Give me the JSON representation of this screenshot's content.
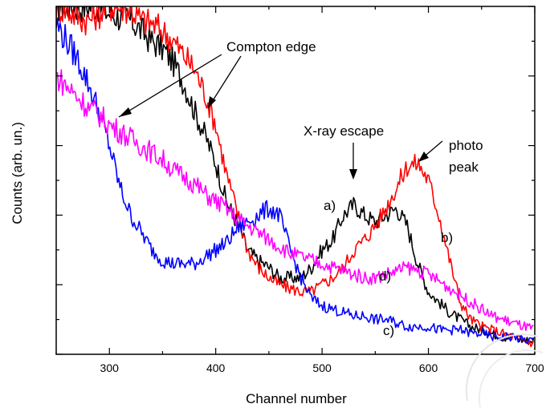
{
  "chart_data": {
    "type": "line",
    "xlabel": "Channel number",
    "ylabel": "Counts (arb. un.)",
    "xlim": [
      250,
      700
    ],
    "ylim": [
      0,
      100
    ],
    "xticks": [
      300,
      400,
      500,
      600,
      700
    ],
    "yticks_labeled": false,
    "grid": false,
    "series": [
      {
        "name": "a)",
        "color": "#000000",
        "x": [
          250,
          260,
          270,
          280,
          290,
          300,
          310,
          320,
          330,
          340,
          350,
          360,
          370,
          380,
          390,
          400,
          410,
          420,
          430,
          440,
          450,
          460,
          470,
          480,
          490,
          500,
          510,
          520,
          530,
          540,
          550,
          560,
          570,
          580,
          590,
          600,
          610,
          620,
          630,
          640,
          650,
          660,
          670,
          680,
          690,
          700
        ],
        "y": [
          100,
          100,
          100,
          100,
          100,
          98,
          97,
          96,
          93,
          90,
          88,
          84,
          78,
          70,
          63,
          55,
          44,
          38,
          30,
          27,
          25,
          22,
          22,
          22,
          25,
          30,
          33,
          40,
          43,
          40,
          38,
          40,
          42,
          37,
          26,
          18,
          15,
          12,
          10,
          8,
          7,
          6,
          5,
          5,
          4,
          4
        ]
      },
      {
        "name": "b)",
        "color": "#ff0000",
        "x": [
          250,
          260,
          270,
          280,
          290,
          300,
          310,
          320,
          330,
          340,
          350,
          360,
          370,
          380,
          390,
          400,
          410,
          420,
          430,
          440,
          450,
          460,
          470,
          480,
          490,
          500,
          510,
          520,
          530,
          540,
          550,
          560,
          570,
          580,
          590,
          600,
          610,
          620,
          630,
          640,
          650,
          660,
          670,
          680,
          690,
          700
        ],
        "y": [
          100,
          99,
          97,
          96,
          98,
          100,
          100,
          99,
          96,
          95,
          93,
          90,
          86,
          82,
          75,
          66,
          52,
          41,
          30,
          25,
          22,
          20,
          19,
          18,
          18,
          20,
          22,
          25,
          30,
          33,
          37,
          42,
          48,
          54,
          55,
          50,
          40,
          27,
          15,
          10,
          8,
          7,
          6,
          5,
          4,
          3
        ]
      },
      {
        "name": "c)",
        "color": "#0000ff",
        "x": [
          250,
          260,
          270,
          280,
          290,
          300,
          310,
          320,
          330,
          340,
          350,
          360,
          370,
          380,
          390,
          400,
          410,
          420,
          430,
          440,
          450,
          460,
          470,
          480,
          490,
          500,
          510,
          520,
          530,
          540,
          550,
          560,
          570,
          580,
          590,
          600,
          610,
          620,
          630,
          640,
          650,
          660,
          670,
          680,
          690,
          700
        ],
        "y": [
          95,
          90,
          85,
          78,
          70,
          60,
          48,
          40,
          35,
          30,
          27,
          26,
          26,
          26,
          28,
          30,
          32,
          36,
          38,
          40,
          42,
          40,
          30,
          22,
          16,
          14,
          13,
          12,
          11,
          11,
          10,
          10,
          9,
          8,
          8,
          8,
          7,
          7,
          7,
          6,
          6,
          5,
          5,
          5,
          4,
          4
        ]
      },
      {
        "name": "d)",
        "color": "#ff00ff",
        "x": [
          250,
          260,
          270,
          280,
          290,
          300,
          310,
          320,
          330,
          340,
          350,
          360,
          370,
          380,
          390,
          400,
          410,
          420,
          430,
          440,
          450,
          460,
          470,
          480,
          490,
          500,
          510,
          520,
          530,
          540,
          550,
          560,
          570,
          580,
          590,
          600,
          610,
          620,
          630,
          640,
          650,
          660,
          670,
          680,
          690,
          700
        ],
        "y": [
          80,
          77,
          74,
          71,
          69,
          66,
          64,
          62,
          60,
          58,
          56,
          53,
          51,
          49,
          46,
          44,
          42,
          39,
          37,
          35,
          33,
          31,
          29,
          28,
          27,
          26,
          25,
          24,
          23,
          22,
          22,
          23,
          24,
          25,
          24,
          23,
          21,
          19,
          17,
          15,
          13,
          11,
          10,
          9,
          8,
          7
        ]
      }
    ],
    "annotations": [
      {
        "text": "Compton edge"
      },
      {
        "text": "X-ray escape"
      },
      {
        "text": "photo"
      },
      {
        "text": "peak"
      },
      {
        "text": "a)"
      },
      {
        "text": "b)"
      },
      {
        "text": "c)"
      },
      {
        "text": "d)"
      }
    ]
  }
}
